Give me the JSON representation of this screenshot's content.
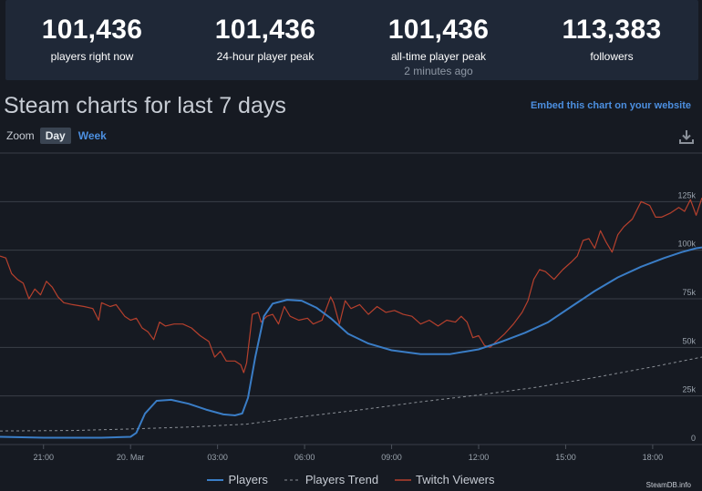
{
  "stats": [
    {
      "value": "101,436",
      "label": "players right now",
      "sub": ""
    },
    {
      "value": "101,436",
      "label": "24-hour player peak",
      "sub": ""
    },
    {
      "value": "101,436",
      "label": "all-time player peak",
      "sub": "2 minutes ago"
    },
    {
      "value": "113,383",
      "label": "followers",
      "sub": ""
    }
  ],
  "heading": "Steam charts for last 7 days",
  "embed_link": "Embed this chart on your website",
  "zoom": {
    "label": "Zoom",
    "options": [
      "Day",
      "Week"
    ],
    "active": "Day"
  },
  "credit": "SteamDB.info",
  "colors": {
    "players": "#3a7dc6",
    "trend": "#8a8f96",
    "twitch": "#b6402d",
    "grid": "#3a3f48"
  },
  "chart_data": {
    "type": "line",
    "x_tick_labels": [
      "21:00",
      "20. Mar",
      "03:00",
      "06:00",
      "09:00",
      "12:00",
      "15:00",
      "18:00"
    ],
    "y_tick_labels": [
      "0",
      "25k",
      "50k",
      "75k",
      "100k",
      "125k"
    ],
    "ylim": [
      0,
      150000
    ],
    "x_unit": "hours since 20. Mar 00:00 (local)",
    "xlim": [
      -4.5,
      19.7
    ],
    "grid": true,
    "legend_position": "bottom-center",
    "series": [
      {
        "name": "Players",
        "style": "solid",
        "points": [
          [
            -4.5,
            4000
          ],
          [
            -3,
            3500
          ],
          [
            -1,
            3500
          ],
          [
            0,
            4000
          ],
          [
            0.2,
            6000
          ],
          [
            0.5,
            16000
          ],
          [
            0.9,
            22500
          ],
          [
            1.4,
            23000
          ],
          [
            2.0,
            21000
          ],
          [
            2.6,
            18000
          ],
          [
            3.2,
            15500
          ],
          [
            3.6,
            15000
          ],
          [
            3.85,
            16000
          ],
          [
            4.05,
            24000
          ],
          [
            4.3,
            45000
          ],
          [
            4.6,
            66000
          ],
          [
            4.9,
            72500
          ],
          [
            5.4,
            74500
          ],
          [
            5.9,
            74000
          ],
          [
            6.4,
            70500
          ],
          [
            6.9,
            65000
          ],
          [
            7.5,
            57000
          ],
          [
            8.2,
            52000
          ],
          [
            9.0,
            48500
          ],
          [
            10.0,
            46500
          ],
          [
            11.0,
            46500
          ],
          [
            12.0,
            49000
          ],
          [
            12.8,
            53000
          ],
          [
            13.6,
            57500
          ],
          [
            14.4,
            63000
          ],
          [
            15.2,
            71000
          ],
          [
            16.0,
            79000
          ],
          [
            16.8,
            86000
          ],
          [
            17.6,
            91500
          ],
          [
            18.4,
            96000
          ],
          [
            19.0,
            99000
          ],
          [
            19.5,
            101000
          ],
          [
            19.7,
            101436
          ]
        ]
      },
      {
        "name": "Players Trend",
        "style": "dashed",
        "points": [
          [
            -4.5,
            7000
          ],
          [
            -2,
            7200
          ],
          [
            0,
            8000
          ],
          [
            2,
            9000
          ],
          [
            4,
            10500
          ],
          [
            6,
            14500
          ],
          [
            8,
            18000
          ],
          [
            10,
            22000
          ],
          [
            12,
            25500
          ],
          [
            14,
            29500
          ],
          [
            16,
            34500
          ],
          [
            18,
            40000
          ],
          [
            19.7,
            45000
          ]
        ]
      },
      {
        "name": "Twitch Viewers",
        "style": "solid",
        "points": [
          [
            -4.5,
            97000
          ],
          [
            -4.3,
            96000
          ],
          [
            -4.1,
            88000
          ],
          [
            -3.9,
            85000
          ],
          [
            -3.7,
            83000
          ],
          [
            -3.5,
            75000
          ],
          [
            -3.3,
            80000
          ],
          [
            -3.1,
            77000
          ],
          [
            -2.9,
            84000
          ],
          [
            -2.7,
            81000
          ],
          [
            -2.5,
            76000
          ],
          [
            -2.3,
            73000
          ],
          [
            -2.0,
            72000
          ],
          [
            -1.6,
            71000
          ],
          [
            -1.3,
            70000
          ],
          [
            -1.1,
            64000
          ],
          [
            -1.0,
            73000
          ],
          [
            -0.7,
            71000
          ],
          [
            -0.5,
            72000
          ],
          [
            -0.2,
            66000
          ],
          [
            0.0,
            64000
          ],
          [
            0.2,
            65000
          ],
          [
            0.4,
            60000
          ],
          [
            0.6,
            58000
          ],
          [
            0.8,
            54000
          ],
          [
            1.0,
            63000
          ],
          [
            1.2,
            61000
          ],
          [
            1.5,
            62000
          ],
          [
            1.8,
            62000
          ],
          [
            2.1,
            60000
          ],
          [
            2.4,
            56000
          ],
          [
            2.7,
            53000
          ],
          [
            2.9,
            45000
          ],
          [
            3.1,
            48000
          ],
          [
            3.3,
            43000
          ],
          [
            3.6,
            43000
          ],
          [
            3.8,
            41000
          ],
          [
            3.9,
            37000
          ],
          [
            4.0,
            42000
          ],
          [
            4.2,
            67000
          ],
          [
            4.4,
            68000
          ],
          [
            4.5,
            63000
          ],
          [
            4.7,
            66000
          ],
          [
            4.9,
            67000
          ],
          [
            5.1,
            62000
          ],
          [
            5.3,
            71000
          ],
          [
            5.5,
            66000
          ],
          [
            5.8,
            64000
          ],
          [
            6.1,
            65000
          ],
          [
            6.3,
            62000
          ],
          [
            6.6,
            64000
          ],
          [
            6.9,
            76000
          ],
          [
            7.0,
            73000
          ],
          [
            7.2,
            62000
          ],
          [
            7.4,
            74000
          ],
          [
            7.6,
            70000
          ],
          [
            7.9,
            72000
          ],
          [
            8.2,
            67000
          ],
          [
            8.5,
            71000
          ],
          [
            8.8,
            68000
          ],
          [
            9.1,
            69000
          ],
          [
            9.4,
            67000
          ],
          [
            9.7,
            66000
          ],
          [
            10.0,
            62000
          ],
          [
            10.3,
            64000
          ],
          [
            10.6,
            61000
          ],
          [
            10.9,
            64000
          ],
          [
            11.2,
            63000
          ],
          [
            11.4,
            66000
          ],
          [
            11.6,
            63000
          ],
          [
            11.8,
            55000
          ],
          [
            12.0,
            56000
          ],
          [
            12.2,
            51000
          ],
          [
            12.4,
            50000
          ],
          [
            12.6,
            53000
          ],
          [
            12.9,
            57000
          ],
          [
            13.2,
            62000
          ],
          [
            13.5,
            68000
          ],
          [
            13.7,
            74000
          ],
          [
            13.9,
            85000
          ],
          [
            14.1,
            90000
          ],
          [
            14.3,
            89000
          ],
          [
            14.6,
            85000
          ],
          [
            14.9,
            90000
          ],
          [
            15.2,
            94000
          ],
          [
            15.4,
            97000
          ],
          [
            15.6,
            105000
          ],
          [
            15.8,
            106000
          ],
          [
            16.0,
            101000
          ],
          [
            16.2,
            110000
          ],
          [
            16.4,
            104000
          ],
          [
            16.6,
            99000
          ],
          [
            16.8,
            108000
          ],
          [
            17.0,
            112000
          ],
          [
            17.3,
            116000
          ],
          [
            17.6,
            125000
          ],
          [
            17.9,
            123000
          ],
          [
            18.1,
            117000
          ],
          [
            18.3,
            117000
          ],
          [
            18.6,
            119000
          ],
          [
            18.9,
            122000
          ],
          [
            19.1,
            120000
          ],
          [
            19.3,
            126000
          ],
          [
            19.5,
            118000
          ],
          [
            19.7,
            127000
          ]
        ]
      }
    ]
  }
}
